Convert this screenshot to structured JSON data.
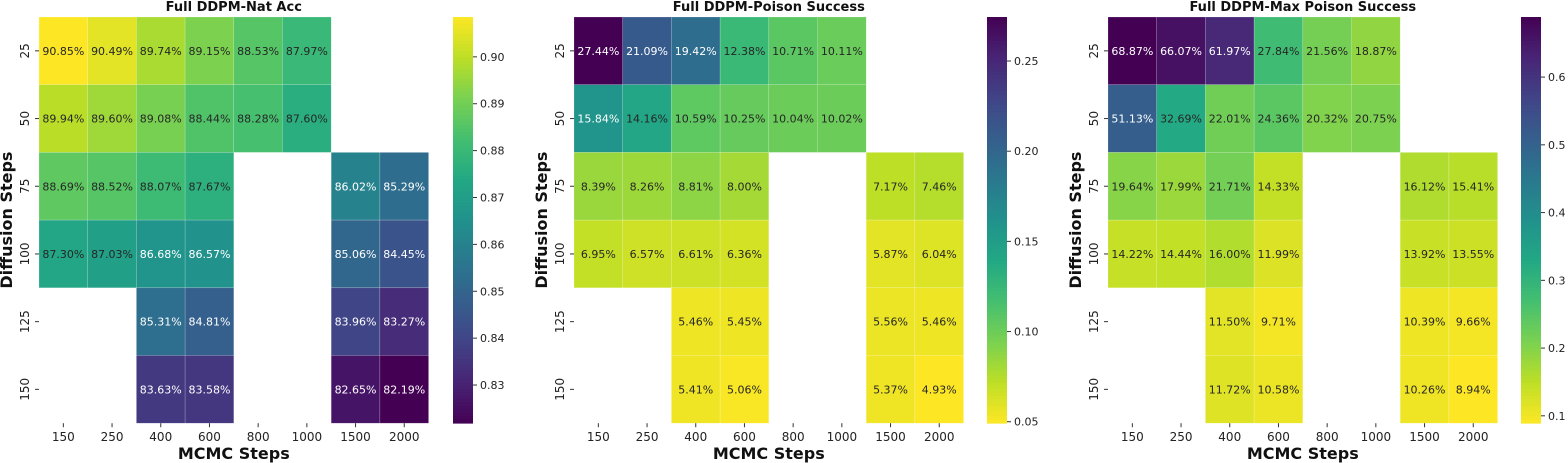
{
  "chart_data": [
    {
      "type": "heatmap",
      "title": "Full DDPM-Nat Acc",
      "xlabel": "MCMC Steps",
      "ylabel": "Diffusion Steps",
      "x_categories": [
        "150",
        "250",
        "400",
        "600",
        "800",
        "1000",
        "1500",
        "2000"
      ],
      "y_categories": [
        "25",
        "50",
        "75",
        "100",
        "125",
        "150"
      ],
      "values": [
        [
          0.9085,
          0.9049,
          0.8974,
          0.8915,
          0.8853,
          0.8797,
          null,
          null
        ],
        [
          0.8994,
          0.896,
          0.8908,
          0.8844,
          0.8828,
          0.876,
          null,
          null
        ],
        [
          0.8869,
          0.8852,
          0.8807,
          0.8767,
          null,
          null,
          0.8602,
          0.8529
        ],
        [
          0.873,
          0.8703,
          0.8668,
          0.8657,
          null,
          null,
          0.8506,
          0.8445
        ],
        [
          null,
          null,
          0.8531,
          0.8481,
          null,
          null,
          0.8396,
          0.8327
        ],
        [
          null,
          null,
          0.8363,
          0.8358,
          null,
          null,
          0.8265,
          0.8219
        ]
      ],
      "labels": [
        [
          "90.85%",
          "90.49%",
          "89.74%",
          "89.15%",
          "88.53%",
          "87.97%",
          "",
          ""
        ],
        [
          "89.94%",
          "89.60%",
          "89.08%",
          "88.44%",
          "88.28%",
          "87.60%",
          "",
          ""
        ],
        [
          "88.69%",
          "88.52%",
          "88.07%",
          "87.67%",
          "",
          "",
          "86.02%",
          "85.29%"
        ],
        [
          "87.30%",
          "87.03%",
          "86.68%",
          "86.57%",
          "",
          "",
          "85.06%",
          "84.45%"
        ],
        [
          "",
          "",
          "85.31%",
          "84.81%",
          "",
          "",
          "83.96%",
          "83.27%"
        ],
        [
          "",
          "",
          "83.63%",
          "83.58%",
          "",
          "",
          "82.65%",
          "82.19%"
        ]
      ],
      "colormap": "viridis",
      "vmin": 0.8219,
      "vmax": 0.9085,
      "colorbar_ticks": [
        "0.83",
        "0.84",
        "0.85",
        "0.86",
        "0.87",
        "0.88",
        "0.89",
        "0.90"
      ],
      "colorbar_tick_values": [
        0.83,
        0.84,
        0.85,
        0.86,
        0.87,
        0.88,
        0.89,
        0.9
      ]
    },
    {
      "type": "heatmap",
      "title": "Full DDPM-Poison Success",
      "xlabel": "MCMC Steps",
      "ylabel": "Diffusion Steps",
      "x_categories": [
        "150",
        "250",
        "400",
        "600",
        "800",
        "1000",
        "1500",
        "2000"
      ],
      "y_categories": [
        "25",
        "50",
        "75",
        "100",
        "125",
        "150"
      ],
      "values": [
        [
          0.2744,
          0.2109,
          0.1942,
          0.1238,
          0.1071,
          0.1011,
          null,
          null
        ],
        [
          0.1584,
          0.1416,
          0.1059,
          0.1025,
          0.1004,
          0.1002,
          null,
          null
        ],
        [
          0.0839,
          0.0826,
          0.0881,
          0.08,
          null,
          null,
          0.0717,
          0.0746
        ],
        [
          0.0695,
          0.0657,
          0.0661,
          0.0636,
          null,
          null,
          0.0587,
          0.0604
        ],
        [
          null,
          null,
          0.0546,
          0.0545,
          null,
          null,
          0.0556,
          0.0546
        ],
        [
          null,
          null,
          0.0541,
          0.0506,
          null,
          null,
          0.0537,
          0.0493
        ]
      ],
      "labels": [
        [
          "27.44%",
          "21.09%",
          "19.42%",
          "12.38%",
          "10.71%",
          "10.11%",
          "",
          ""
        ],
        [
          "15.84%",
          "14.16%",
          "10.59%",
          "10.25%",
          "10.04%",
          "10.02%",
          "",
          ""
        ],
        [
          "8.39%",
          "8.26%",
          "8.81%",
          "8.00%",
          "",
          "",
          "7.17%",
          "7.46%"
        ],
        [
          "6.95%",
          "6.57%",
          "6.61%",
          "6.36%",
          "",
          "",
          "5.87%",
          "6.04%"
        ],
        [
          "",
          "",
          "5.46%",
          "5.45%",
          "",
          "",
          "5.56%",
          "5.46%"
        ],
        [
          "",
          "",
          "5.41%",
          "5.06%",
          "",
          "",
          "5.37%",
          "4.93%"
        ]
      ],
      "colormap": "viridis_r",
      "vmin": 0.0493,
      "vmax": 0.2744,
      "colorbar_ticks": [
        "0.05",
        "0.10",
        "0.15",
        "0.20",
        "0.25"
      ],
      "colorbar_tick_values": [
        0.05,
        0.1,
        0.15,
        0.2,
        0.25
      ]
    },
    {
      "type": "heatmap",
      "title": "Full DDPM-Max Poison Success",
      "xlabel": "MCMC Steps",
      "ylabel": "Diffusion Steps",
      "x_categories": [
        "150",
        "250",
        "400",
        "600",
        "800",
        "1000",
        "1500",
        "2000"
      ],
      "y_categories": [
        "25",
        "50",
        "75",
        "100",
        "125",
        "150"
      ],
      "values": [
        [
          0.6887,
          0.6607,
          0.6197,
          0.2784,
          0.2156,
          0.1887,
          null,
          null
        ],
        [
          0.5113,
          0.3269,
          0.2201,
          0.2436,
          0.2032,
          0.2075,
          null,
          null
        ],
        [
          0.1964,
          0.1799,
          0.2171,
          0.1433,
          null,
          null,
          0.1612,
          0.1541
        ],
        [
          0.1422,
          0.1444,
          0.16,
          0.1199,
          null,
          null,
          0.1392,
          0.1355
        ],
        [
          null,
          null,
          0.115,
          0.0971,
          null,
          null,
          0.1039,
          0.0966
        ],
        [
          null,
          null,
          0.1172,
          0.1058,
          null,
          null,
          0.1026,
          0.0894
        ]
      ],
      "labels": [
        [
          "68.87%",
          "66.07%",
          "61.97%",
          "27.84%",
          "21.56%",
          "18.87%",
          "",
          ""
        ],
        [
          "51.13%",
          "32.69%",
          "22.01%",
          "24.36%",
          "20.32%",
          "20.75%",
          "",
          ""
        ],
        [
          "19.64%",
          "17.99%",
          "21.71%",
          "14.33%",
          "",
          "",
          "16.12%",
          "15.41%"
        ],
        [
          "14.22%",
          "14.44%",
          "16.00%",
          "11.99%",
          "",
          "",
          "13.92%",
          "13.55%"
        ],
        [
          "",
          "",
          "11.50%",
          "9.71%",
          "",
          "",
          "10.39%",
          "9.66%"
        ],
        [
          "",
          "",
          "11.72%",
          "10.58%",
          "",
          "",
          "10.26%",
          "8.94%"
        ]
      ],
      "colormap": "viridis_r",
      "vmin": 0.0894,
      "vmax": 0.6887,
      "colorbar_ticks": [
        "0.1",
        "0.2",
        "0.3",
        "0.4",
        "0.5",
        "0.6"
      ],
      "colorbar_tick_values": [
        0.1,
        0.2,
        0.3,
        0.4,
        0.5,
        0.6
      ]
    }
  ]
}
